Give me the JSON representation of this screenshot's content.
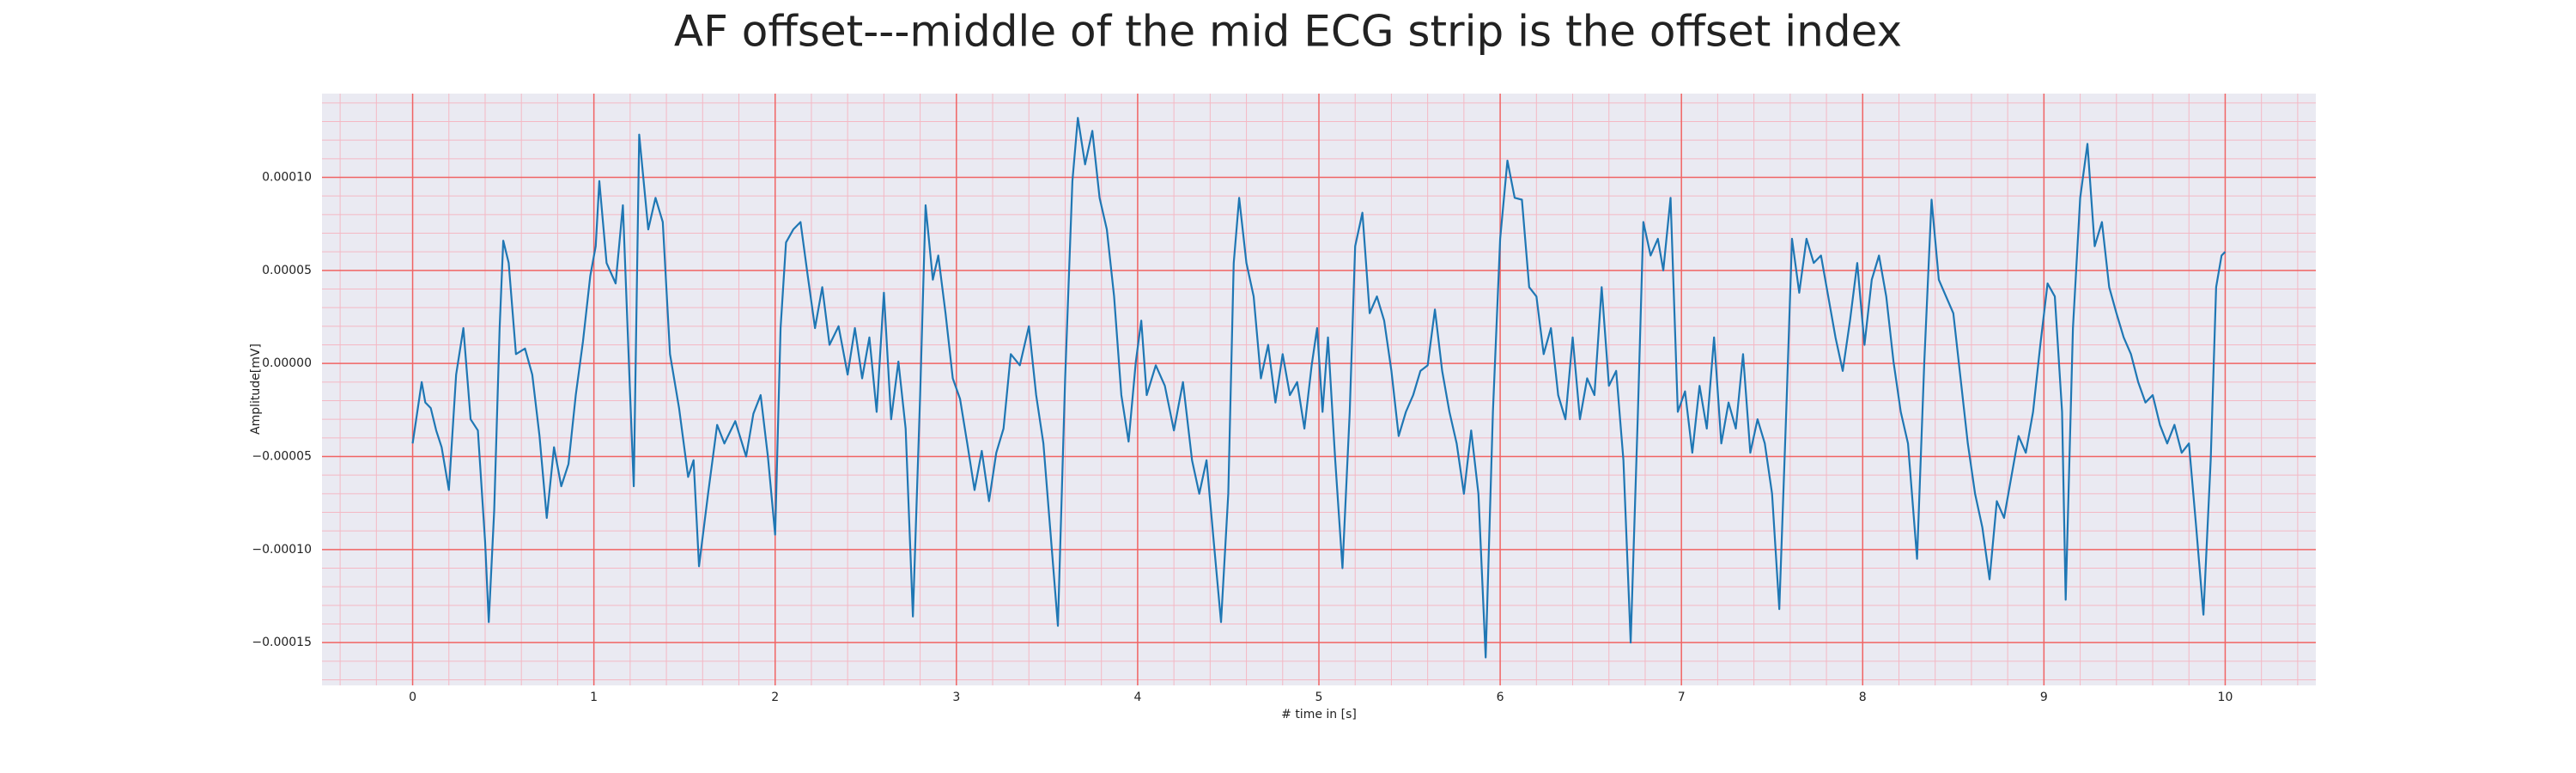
{
  "chart_data": {
    "type": "line",
    "title": "AF offset---middle of the mid ECG strip is the offset index",
    "xlabel": "# time in [s]",
    "ylabel": "Amplitude[mV]",
    "xlim": [
      -0.5,
      10.5
    ],
    "ylim": [
      -0.000173,
      0.000145
    ],
    "xticks": [
      0,
      1,
      2,
      3,
      4,
      5,
      6,
      7,
      8,
      9,
      10
    ],
    "yticks": [
      {
        "value": -0.00015,
        "label": "−0.00015"
      },
      {
        "value": -0.0001,
        "label": "−0.00010"
      },
      {
        "value": -5e-05,
        "label": "−0.00005"
      },
      {
        "value": 0,
        "label": "0.00000"
      },
      {
        "value": 5e-05,
        "label": "0.00005"
      },
      {
        "value": 0.0001,
        "label": "0.00010"
      }
    ],
    "grid": true,
    "minor_grid": true,
    "x": [
      0,
      0.05,
      0.07,
      0.1,
      0.13,
      0.16,
      0.2,
      0.24,
      0.28,
      0.32,
      0.36,
      0.4,
      0.42,
      0.45,
      0.48,
      0.5,
      0.53,
      0.57,
      0.62,
      0.66,
      0.7,
      0.74,
      0.78,
      0.82,
      0.86,
      0.9,
      0.94,
      0.98,
      1.01,
      1.03,
      1.07,
      1.12,
      1.16,
      1.2,
      1.22,
      1.25,
      1.3,
      1.34,
      1.38,
      1.42,
      1.47,
      1.52,
      1.55,
      1.58,
      1.63,
      1.68,
      1.72,
      1.78,
      1.84,
      1.88,
      1.92,
      1.96,
      2.0,
      2.03,
      2.06,
      2.1,
      2.14,
      2.18,
      2.22,
      2.26,
      2.3,
      2.35,
      2.4,
      2.44,
      2.48,
      2.52,
      2.56,
      2.6,
      2.64,
      2.68,
      2.72,
      2.76,
      2.8,
      2.83,
      2.87,
      2.9,
      2.94,
      2.98,
      3.02,
      3.06,
      3.1,
      3.14,
      3.18,
      3.22,
      3.26,
      3.3,
      3.35,
      3.4,
      3.44,
      3.48,
      3.52,
      3.56,
      3.6,
      3.64,
      3.67,
      3.71,
      3.75,
      3.79,
      3.83,
      3.87,
      3.91,
      3.95,
      3.99,
      4.02,
      4.05,
      4.1,
      4.15,
      4.2,
      4.25,
      4.3,
      4.34,
      4.38,
      4.42,
      4.46,
      4.5,
      4.53,
      4.56,
      4.6,
      4.64,
      4.68,
      4.72,
      4.76,
      4.8,
      4.84,
      4.88,
      4.92,
      4.96,
      4.99,
      5.02,
      5.05,
      5.09,
      5.13,
      5.17,
      5.2,
      5.24,
      5.28,
      5.32,
      5.36,
      5.4,
      5.44,
      5.48,
      5.52,
      5.56,
      5.6,
      5.64,
      5.68,
      5.72,
      5.76,
      5.8,
      5.84,
      5.88,
      5.92,
      5.96,
      6.0,
      6.04,
      6.08,
      6.12,
      6.16,
      6.2,
      6.24,
      6.28,
      6.32,
      6.36,
      6.4,
      6.44,
      6.48,
      6.52,
      6.56,
      6.6,
      6.64,
      6.68,
      6.72,
      6.76,
      6.79,
      6.83,
      6.87,
      6.9,
      6.94,
      6.98,
      7.02,
      7.06,
      7.1,
      7.14,
      7.18,
      7.22,
      7.26,
      7.3,
      7.34,
      7.38,
      7.42,
      7.46,
      7.5,
      7.54,
      7.58,
      7.61,
      7.65,
      7.69,
      7.73,
      7.77,
      7.81,
      7.85,
      7.89,
      7.93,
      7.97,
      8.01,
      8.05,
      8.09,
      8.13,
      8.17,
      8.21,
      8.25,
      8.3,
      8.34,
      8.38,
      8.42,
      8.46,
      8.5,
      8.54,
      8.58,
      8.62,
      8.66,
      8.7,
      8.74,
      8.78,
      8.82,
      8.86,
      8.9,
      8.94,
      8.98,
      9.02,
      9.06,
      9.1,
      9.12,
      9.16,
      9.2,
      9.24,
      9.28,
      9.32,
      9.36,
      9.4,
      9.44,
      9.48,
      9.52,
      9.56,
      9.6,
      9.64,
      9.68,
      9.72,
      9.76,
      9.8,
      9.84,
      9.88,
      9.92,
      9.95,
      9.98,
      10.0
    ],
    "series": [
      {
        "color": "#1f77b4",
        "values": [
          -4.3e-05,
          -1e-05,
          -2.1e-05,
          -2.4e-05,
          -3.6e-05,
          -4.5e-05,
          -6.8e-05,
          -6e-06,
          1.9e-05,
          -3e-05,
          -3.6e-05,
          -9.6e-05,
          -0.000139,
          -7.9e-05,
          1.9e-05,
          6.6e-05,
          5.4e-05,
          5e-06,
          8e-06,
          -6e-06,
          -3.9e-05,
          -8.3e-05,
          -4.5e-05,
          -6.6e-05,
          -5.4e-05,
          -1.7e-05,
          1.2e-05,
          4.7e-05,
          6.3e-05,
          9.8e-05,
          5.4e-05,
          4.3e-05,
          8.5e-05,
          -1.7e-05,
          -6.6e-05,
          0.000123,
          7.2e-05,
          8.9e-05,
          7.6e-05,
          5e-06,
          -2.4e-05,
          -6.1e-05,
          -5.2e-05,
          -0.000109,
          -7e-05,
          -3.3e-05,
          -4.3e-05,
          -3.1e-05,
          -5e-05,
          -2.7e-05,
          -1.7e-05,
          -5e-05,
          -9.2e-05,
          1.9e-05,
          6.5e-05,
          7.2e-05,
          7.6e-05,
          4.7e-05,
          1.9e-05,
          4.1e-05,
          1e-05,
          2e-05,
          -6e-06,
          1.9e-05,
          -8e-06,
          1.4e-05,
          -2.6e-05,
          3.8e-05,
          -3e-05,
          1e-06,
          -3.5e-05,
          -0.000136,
          -1.7e-05,
          8.5e-05,
          4.5e-05,
          5.8e-05,
          2.7e-05,
          -8e-06,
          -1.9e-05,
          -4.3e-05,
          -6.8e-05,
          -4.7e-05,
          -7.4e-05,
          -4.8e-05,
          -3.5e-05,
          5e-06,
          -1e-06,
          2e-05,
          -1.7e-05,
          -4.3e-05,
          -9.2e-05,
          -0.000141,
          -8e-06,
          9.8e-05,
          0.000132,
          0.000107,
          0.000125,
          8.9e-05,
          7.2e-05,
          3.6e-05,
          -1.7e-05,
          -4.2e-05,
          1e-06,
          2.3e-05,
          -1.7e-05,
          -1e-06,
          -1.2e-05,
          -3.6e-05,
          -1e-05,
          -5.2e-05,
          -7e-05,
          -5.2e-05,
          -9.6e-05,
          -0.000139,
          -7e-05,
          5.4e-05,
          8.9e-05,
          5.4e-05,
          3.6e-05,
          -8e-06,
          1e-05,
          -2.1e-05,
          5e-06,
          -1.7e-05,
          -1e-05,
          -3.5e-05,
          -1e-06,
          1.9e-05,
          -2.6e-05,
          1.4e-05,
          -5.2e-05,
          -0.00011,
          -2.6e-05,
          6.3e-05,
          8.1e-05,
          2.7e-05,
          3.6e-05,
          2.3e-05,
          -4e-06,
          -3.9e-05,
          -2.6e-05,
          -1.7e-05,
          -4e-06,
          -1e-06,
          2.9e-05,
          -4e-06,
          -2.6e-05,
          -4.3e-05,
          -7e-05,
          -3.6e-05,
          -7e-05,
          -0.000158,
          -2.6e-05,
          6.7e-05,
          0.000109,
          8.9e-05,
          8.8e-05,
          4.1e-05,
          3.6e-05,
          5e-06,
          1.9e-05,
          -1.7e-05,
          -3e-05,
          1.4e-05,
          -3e-05,
          -8e-06,
          -1.7e-05,
          4.1e-05,
          -1.2e-05,
          -4e-06,
          -5.2e-05,
          -0.00015,
          -2.6e-05,
          7.6e-05,
          5.8e-05,
          6.7e-05,
          5e-05,
          8.9e-05,
          -2.6e-05,
          -1.5e-05,
          -4.8e-05,
          -1.2e-05,
          -3.5e-05,
          1.4e-05,
          -4.3e-05,
          -2.1e-05,
          -3.5e-05,
          5e-06,
          -4.8e-05,
          -3e-05,
          -4.3e-05,
          -7e-05,
          -0.000132,
          -2.1e-05,
          6.7e-05,
          3.8e-05,
          6.7e-05,
          5.4e-05,
          5.8e-05,
          3.6e-05,
          1.4e-05,
          -4e-06,
          2.3e-05,
          5.4e-05,
          1e-05,
          4.5e-05,
          5.8e-05,
          3.6e-05,
          1e-06,
          -2.6e-05,
          -4.3e-05,
          -0.000105,
          1e-06,
          8.8e-05,
          4.5e-05,
          3.6e-05,
          2.7e-05,
          -8e-06,
          -4.3e-05,
          -7e-05,
          -8.8e-05,
          -0.000116,
          -7.4e-05,
          -8.3e-05,
          -6.1e-05,
          -3.9e-05,
          -4.8e-05,
          -2.6e-05,
          1e-05,
          4.3e-05,
          3.6e-05,
          -2.6e-05,
          -0.000127,
          1.9e-05,
          8.9e-05,
          0.000118,
          6.3e-05,
          7.6e-05,
          4.1e-05,
          2.7e-05,
          1.4e-05,
          5e-06,
          -1e-05,
          -2.1e-05,
          -1.7e-05,
          -3.3e-05,
          -4.3e-05,
          -3.3e-05,
          -4.8e-05,
          -4.3e-05,
          -8.8e-05,
          -0.000135,
          -5.2e-05,
          4.1e-05,
          5.8e-05,
          6e-05
        ]
      }
    ]
  }
}
